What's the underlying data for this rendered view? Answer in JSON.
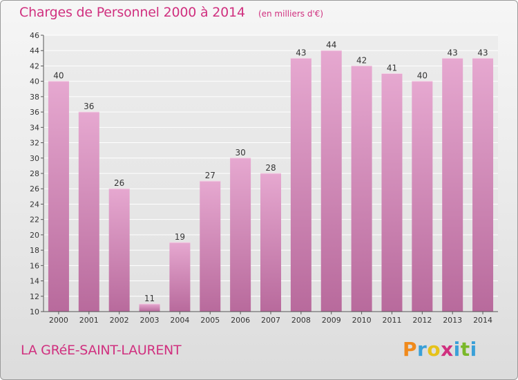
{
  "header": {
    "title": "Charges de Personnel 2000 à 2014",
    "subtitle": "(en milliers d'€)"
  },
  "footer": {
    "commune": "LA GRéE-SAINT-LAURENT",
    "logo_text": "Proxiti",
    "logo_colors": [
      "#f08a1c",
      "#3aa0d8",
      "#e6c21a",
      "#d0307f",
      "#3aa0d8",
      "#7ab829",
      "#3aa0d8"
    ]
  },
  "chart_data": {
    "type": "bar",
    "categories": [
      "2000",
      "2001",
      "2002",
      "2003",
      "2004",
      "2005",
      "2006",
      "2007",
      "2008",
      "2009",
      "2010",
      "2011",
      "2012",
      "2013",
      "2014"
    ],
    "values": [
      40,
      36,
      26,
      11,
      19,
      27,
      30,
      28,
      43,
      44,
      42,
      41,
      40,
      43,
      43
    ],
    "title": "Charges de Personnel 2000 à 2014",
    "subtitle": "(en milliers d'€)",
    "ylim": [
      10,
      46
    ],
    "yticks": [
      10,
      12,
      14,
      16,
      18,
      20,
      22,
      24,
      26,
      28,
      30,
      32,
      34,
      36,
      38,
      40,
      42,
      44,
      46
    ],
    "grid": true,
    "bar_color_top": "#e6a8d0",
    "bar_color_bottom": "#b86a9c"
  }
}
